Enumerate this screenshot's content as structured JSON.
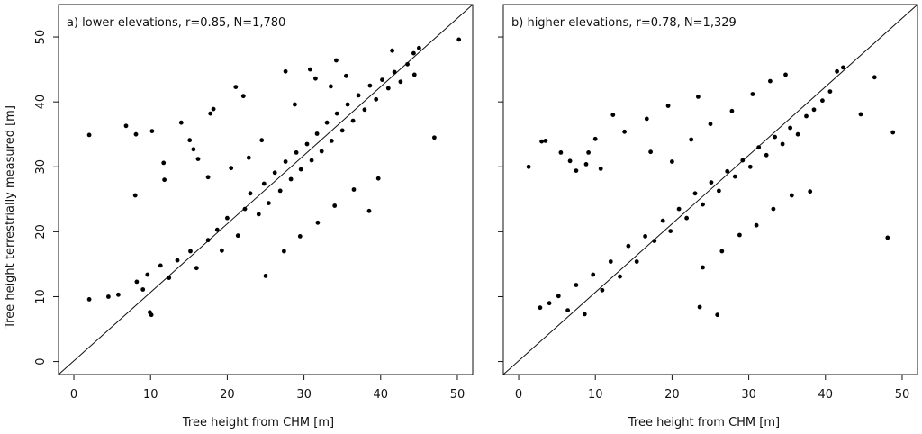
{
  "figure": {
    "shared_ylabel": "Tree height terrestrially measured [m]"
  },
  "chart_data": [
    {
      "type": "scatter",
      "title": "a) lower elevations, r=0.85, N=1,780",
      "xlabel": "Tree height from CHM [m]",
      "ylabel": "Tree height terrestrially measured [m]",
      "xlim": [
        -2,
        52
      ],
      "ylim": [
        -2,
        55
      ],
      "xticks": [
        0,
        10,
        20,
        30,
        40,
        50
      ],
      "yticks": [
        0,
        10,
        20,
        30,
        40,
        50
      ],
      "x_tick_labels": [
        "0",
        "10",
        "20",
        "30",
        "40",
        "50"
      ],
      "y_tick_labels": [
        "0",
        "10",
        "20",
        "30",
        "40",
        "50"
      ],
      "reference_line": {
        "type": "1:1",
        "from": [
          -2,
          -2
        ],
        "to": [
          52,
          52
        ]
      },
      "grid": false,
      "n": 1780,
      "r": 0.85,
      "points": [
        [
          2.0,
          34.9
        ],
        [
          2.0,
          9.6
        ],
        [
          4.5,
          10.0
        ],
        [
          5.8,
          10.3
        ],
        [
          6.8,
          36.3
        ],
        [
          8.0,
          25.6
        ],
        [
          8.1,
          35.0
        ],
        [
          9.9,
          7.6
        ],
        [
          10.2,
          35.5
        ],
        [
          10.1,
          7.2
        ],
        [
          11.7,
          30.6
        ],
        [
          11.8,
          28.0
        ],
        [
          14.0,
          36.8
        ],
        [
          15.1,
          34.1
        ],
        [
          15.6,
          32.7
        ],
        [
          17.8,
          38.2
        ],
        [
          18.2,
          38.9
        ],
        [
          21.1,
          42.3
        ],
        [
          22.1,
          40.9
        ],
        [
          27.6,
          44.7
        ],
        [
          34.2,
          46.4
        ],
        [
          47.0,
          34.5
        ],
        [
          50.2,
          49.6
        ],
        [
          45.0,
          48.3
        ],
        [
          44.3,
          47.5
        ],
        [
          41.5,
          47.9
        ],
        [
          8.2,
          12.3
        ],
        [
          9.0,
          11.1
        ],
        [
          9.6,
          13.4
        ],
        [
          11.3,
          14.8
        ],
        [
          12.4,
          12.9
        ],
        [
          13.5,
          15.6
        ],
        [
          15.2,
          17.0
        ],
        [
          16.0,
          14.4
        ],
        [
          17.5,
          18.7
        ],
        [
          18.7,
          20.3
        ],
        [
          19.3,
          17.1
        ],
        [
          20.0,
          22.1
        ],
        [
          21.4,
          19.4
        ],
        [
          22.3,
          23.5
        ],
        [
          23.0,
          25.9
        ],
        [
          24.1,
          22.7
        ],
        [
          24.8,
          27.4
        ],
        [
          25.4,
          24.4
        ],
        [
          26.2,
          29.1
        ],
        [
          26.9,
          26.3
        ],
        [
          27.6,
          30.8
        ],
        [
          28.3,
          28.1
        ],
        [
          29.0,
          32.2
        ],
        [
          29.6,
          29.6
        ],
        [
          30.4,
          33.5
        ],
        [
          31.0,
          31.0
        ],
        [
          31.7,
          35.1
        ],
        [
          32.3,
          32.4
        ],
        [
          33.0,
          36.8
        ],
        [
          33.6,
          34.0
        ],
        [
          34.3,
          38.2
        ],
        [
          35.0,
          35.6
        ],
        [
          35.7,
          39.6
        ],
        [
          36.4,
          37.1
        ],
        [
          37.1,
          41.0
        ],
        [
          37.9,
          38.8
        ],
        [
          38.6,
          42.5
        ],
        [
          39.4,
          40.4
        ],
        [
          40.2,
          43.4
        ],
        [
          41.0,
          42.1
        ],
        [
          41.8,
          44.6
        ],
        [
          42.6,
          43.1
        ],
        [
          43.5,
          45.8
        ],
        [
          44.4,
          44.2
        ],
        [
          25.0,
          13.2
        ],
        [
          27.4,
          17.0
        ],
        [
          29.5,
          19.3
        ],
        [
          31.8,
          21.4
        ],
        [
          34.0,
          24.0
        ],
        [
          36.5,
          26.5
        ],
        [
          38.5,
          23.2
        ],
        [
          39.7,
          28.2
        ],
        [
          33.5,
          42.4
        ],
        [
          28.8,
          39.6
        ],
        [
          31.5,
          43.6
        ],
        [
          24.5,
          34.1
        ],
        [
          22.8,
          31.4
        ],
        [
          20.5,
          29.8
        ],
        [
          17.5,
          28.4
        ],
        [
          16.2,
          31.2
        ],
        [
          30.8,
          45.0
        ],
        [
          35.5,
          44.0
        ]
      ]
    },
    {
      "type": "scatter",
      "title": "b) higher elevations, r=0.78, N=1,329",
      "xlabel": "Tree height from CHM [m]",
      "ylabel": "",
      "xlim": [
        -2,
        52
      ],
      "ylim": [
        -2,
        55
      ],
      "xticks": [
        0,
        10,
        20,
        30,
        40,
        50
      ],
      "yticks": [
        0,
        10,
        20,
        30,
        40,
        50
      ],
      "x_tick_labels": [
        "0",
        "10",
        "20",
        "30",
        "40",
        "50"
      ],
      "y_tick_labels": [
        "",
        "",
        "",
        "",
        "",
        ""
      ],
      "reference_line": {
        "type": "1:1",
        "from": [
          -2,
          -2
        ],
        "to": [
          52,
          52
        ]
      },
      "grid": false,
      "n": 1329,
      "r": 0.78,
      "points": [
        [
          1.3,
          30.0
        ],
        [
          3.0,
          33.9
        ],
        [
          3.5,
          34.0
        ],
        [
          5.5,
          32.2
        ],
        [
          6.7,
          30.9
        ],
        [
          7.5,
          29.4
        ],
        [
          8.8,
          30.4
        ],
        [
          9.1,
          32.2
        ],
        [
          10.0,
          34.3
        ],
        [
          10.7,
          29.7
        ],
        [
          12.3,
          38.0
        ],
        [
          13.8,
          35.4
        ],
        [
          16.7,
          37.4
        ],
        [
          17.2,
          32.3
        ],
        [
          19.5,
          39.4
        ],
        [
          23.4,
          40.8
        ],
        [
          25.9,
          7.2
        ],
        [
          23.6,
          8.4
        ],
        [
          48.1,
          19.1
        ],
        [
          48.8,
          35.3
        ],
        [
          44.6,
          38.1
        ],
        [
          46.4,
          43.8
        ],
        [
          42.3,
          45.3
        ],
        [
          41.5,
          44.7
        ],
        [
          2.8,
          8.3
        ],
        [
          4.0,
          9.0
        ],
        [
          5.2,
          10.1
        ],
        [
          6.4,
          7.9
        ],
        [
          7.5,
          11.8
        ],
        [
          8.6,
          7.3
        ],
        [
          9.7,
          13.4
        ],
        [
          10.9,
          11.0
        ],
        [
          12.0,
          15.4
        ],
        [
          13.2,
          13.1
        ],
        [
          14.3,
          17.8
        ],
        [
          15.4,
          15.4
        ],
        [
          16.5,
          19.3
        ],
        [
          17.7,
          18.6
        ],
        [
          18.8,
          21.7
        ],
        [
          19.8,
          20.1
        ],
        [
          20.9,
          23.5
        ],
        [
          21.9,
          22.1
        ],
        [
          23.0,
          25.9
        ],
        [
          24.0,
          24.2
        ],
        [
          25.1,
          27.6
        ],
        [
          26.1,
          26.3
        ],
        [
          27.2,
          29.3
        ],
        [
          28.2,
          28.5
        ],
        [
          29.2,
          31.0
        ],
        [
          30.2,
          30.0
        ],
        [
          31.3,
          33.0
        ],
        [
          32.3,
          31.8
        ],
        [
          33.4,
          34.6
        ],
        [
          34.4,
          33.5
        ],
        [
          35.4,
          36.0
        ],
        [
          36.4,
          35.0
        ],
        [
          37.5,
          37.8
        ],
        [
          38.5,
          38.8
        ],
        [
          39.6,
          40.2
        ],
        [
          40.6,
          41.6
        ],
        [
          24.0,
          14.5
        ],
        [
          26.5,
          17.0
        ],
        [
          28.8,
          19.5
        ],
        [
          31.0,
          21.0
        ],
        [
          33.2,
          23.5
        ],
        [
          35.6,
          25.6
        ],
        [
          38.0,
          26.2
        ],
        [
          20.0,
          30.8
        ],
        [
          22.5,
          34.2
        ],
        [
          25.0,
          36.6
        ],
        [
          27.8,
          38.6
        ],
        [
          30.5,
          41.2
        ],
        [
          32.8,
          43.2
        ],
        [
          34.8,
          44.2
        ]
      ]
    }
  ]
}
